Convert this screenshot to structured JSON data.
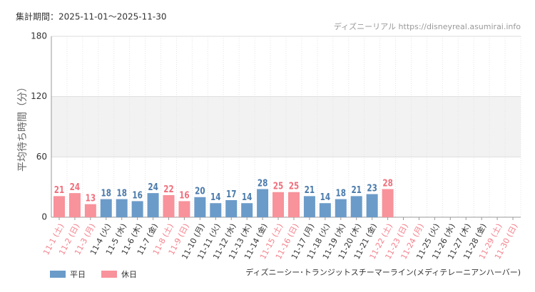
{
  "period": "集計期間：2025-11-01～2025-11-30",
  "source": "ディズニーリアル https://disneyreal.asumirai.info",
  "chart_data": {
    "type": "bar",
    "title": "ディズニーシー･トランジットスチーマーライン(メディテレーニアンハーバー)",
    "y_label": "平均待ち時間（分）",
    "categories": [
      "11-1 (土)",
      "11-2 (日)",
      "11-3 (月)",
      "11-4 (火)",
      "11-5 (水)",
      "11-6 (木)",
      "11-7 (金)",
      "11-8 (土)",
      "11-9 (日)",
      "11-10 (月)",
      "11-11 (火)",
      "11-12 (水)",
      "11-13 (木)",
      "11-14 (金)",
      "11-15 (土)",
      "11-16 (日)",
      "11-17 (月)",
      "11-18 (火)",
      "11-19 (水)",
      "11-20 (木)",
      "11-21 (金)",
      "11-22 (土)",
      "11-23 (日)",
      "11-24 (月)",
      "11-25 (火)",
      "11-26 (水)",
      "11-27 (木)",
      "11-28 (金)",
      "11-29 (土)",
      "11-30 (日)"
    ],
    "category_colors": [
      "#f47f8a",
      "#f47f8a",
      "#f47f8a",
      "#333333",
      "#333333",
      "#333333",
      "#333333",
      "#f47f8a",
      "#f47f8a",
      "#333333",
      "#333333",
      "#333333",
      "#333333",
      "#333333",
      "#f47f8a",
      "#f47f8a",
      "#333333",
      "#333333",
      "#333333",
      "#333333",
      "#333333",
      "#f47f8a",
      "#f47f8a",
      "#f47f8a",
      "#333333",
      "#333333",
      "#333333",
      "#333333",
      "#f47f8a",
      "#f47f8a"
    ],
    "series": [
      {
        "name": "平日",
        "color": "#6b9bc9",
        "label_color": "#4a7aab",
        "values": [
          null,
          null,
          null,
          18,
          18,
          16,
          24,
          null,
          null,
          20,
          14,
          17,
          14,
          28,
          null,
          null,
          21,
          14,
          18,
          21,
          23,
          null,
          null,
          null,
          null,
          null,
          null,
          null,
          null,
          null
        ]
      },
      {
        "name": "休日",
        "color": "#f8929b",
        "label_color": "#f06f7c",
        "values": [
          21,
          24,
          13,
          null,
          null,
          null,
          null,
          22,
          16,
          null,
          null,
          null,
          null,
          null,
          25,
          25,
          null,
          null,
          null,
          null,
          null,
          28,
          null,
          null,
          null,
          null,
          null,
          null,
          null,
          null
        ]
      }
    ],
    "ylim": [
      0,
      180
    ],
    "yticks": [
      0,
      60,
      120,
      180
    ],
    "grid": true
  }
}
